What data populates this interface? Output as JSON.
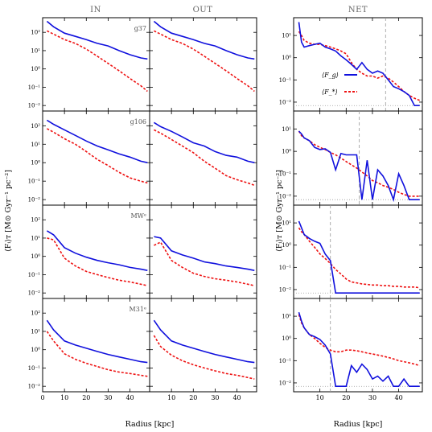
{
  "chart_data": {
    "type": "line",
    "column_titles": [
      "IN",
      "OUT",
      "NET"
    ],
    "row_labels": [
      "g37",
      "g106",
      "MWᵉ",
      "M31ᵉ"
    ],
    "ylabel_left": "⟨Fᵢ⟩ᴛ  [M⊙ Gyr⁻¹ pc⁻²]",
    "ylabel_right": "⟨Fᵢ⟩ᴛ  [M⊙ Gyr⁻¹ pc⁻²]",
    "xlabel": "Radius [kpc]",
    "xlim": [
      0,
      49
    ],
    "ylim_log10": [
      -2.3,
      2.8
    ],
    "ylim_net_log10": [
      -2.4,
      1.8
    ],
    "x_tick_values": [
      0,
      10,
      20,
      30,
      40
    ],
    "x_tick_values_right": [
      10,
      20,
      30,
      40
    ],
    "y_tick_labels": [
      "10⁻²",
      "10⁻¹",
      "10⁰",
      "10¹",
      "10²"
    ],
    "y_tick_exponents": [
      -2,
      -1,
      0,
      1,
      2
    ],
    "y_tick_labels_net": [
      "10⁻²",
      "10⁻¹",
      "10⁰",
      "10¹"
    ],
    "y_tick_exponents_net": [
      -2,
      -1,
      0,
      1
    ],
    "legend": {
      "gas": "⟨F_g⟩",
      "stars": "⟨F_*⟩",
      "placement": "upper-left of top NET panel"
    },
    "colors": {
      "gas": "#1010dd",
      "stars": "#ee1111",
      "guide": "#999999"
    },
    "series_names": [
      "gas",
      "stars"
    ],
    "x": [
      2,
      5,
      10,
      15,
      20,
      25,
      30,
      35,
      40,
      45,
      48
    ],
    "x_net": [
      2,
      3,
      4,
      6,
      8,
      10,
      12,
      14,
      16,
      18,
      20,
      22,
      24,
      26,
      28,
      30,
      32,
      34,
      36,
      38,
      40,
      42,
      44,
      46,
      48
    ],
    "vline_x": [
      35,
      25,
      14,
      14
    ],
    "floor_value": 0.007,
    "panels": [
      {
        "row": 0,
        "col": 0,
        "gas": [
          400,
          200,
          90,
          60,
          40,
          25,
          18,
          10,
          6,
          4,
          3.5
        ],
        "stars": [
          120,
          80,
          40,
          25,
          12,
          5,
          2,
          0.8,
          0.3,
          0.12,
          0.06
        ]
      },
      {
        "row": 0,
        "col": 1,
        "gas": [
          400,
          200,
          90,
          60,
          40,
          25,
          18,
          10,
          6,
          4,
          3.5
        ],
        "stars": [
          120,
          80,
          40,
          25,
          12,
          5,
          2,
          0.8,
          0.3,
          0.12,
          0.06
        ]
      },
      {
        "row": 0,
        "col": 2,
        "gas": [
          40,
          5,
          3,
          3.5,
          4,
          4.5,
          3,
          2.5,
          2,
          1.2,
          0.8,
          0.5,
          0.3,
          0.6,
          0.3,
          0.2,
          0.25,
          0.2,
          0.1,
          0.05,
          0.04,
          0.03,
          0.02,
          0.007,
          0.007
        ],
        "stars": [
          15,
          10,
          6,
          4.5,
          4,
          4,
          3.5,
          3,
          2.5,
          2,
          1.5,
          0.6,
          0.3,
          0.2,
          0.15,
          0.15,
          0.12,
          0.15,
          0.12,
          0.08,
          0.05,
          0.03,
          0.02,
          0.015,
          0.012
        ]
      },
      {
        "row": 1,
        "col": 0,
        "gas": [
          200,
          120,
          60,
          30,
          15,
          8,
          5,
          3,
          2,
          1.2,
          1.0
        ],
        "stars": [
          70,
          45,
          20,
          10,
          4,
          1.5,
          0.7,
          0.3,
          0.15,
          0.1,
          0.08
        ]
      },
      {
        "row": 1,
        "col": 1,
        "gas": [
          150,
          90,
          50,
          25,
          12,
          8,
          4,
          2.5,
          2,
          1.2,
          1.0
        ],
        "stars": [
          60,
          40,
          18,
          8,
          3.5,
          1.2,
          0.5,
          0.2,
          0.12,
          0.08,
          0.06
        ]
      },
      {
        "row": 1,
        "col": 2,
        "gas": [
          8,
          6,
          4,
          3,
          1.5,
          1.2,
          1.3,
          0.9,
          0.15,
          0.8,
          0.7,
          0.7,
          0.7,
          0.007,
          0.4,
          0.007,
          0.15,
          0.08,
          0.03,
          0.007,
          0.1,
          0.03,
          0.007,
          0.007,
          0.007
        ],
        "stars": [
          8,
          5,
          4,
          3,
          2,
          1.5,
          1.2,
          0.9,
          0.7,
          0.5,
          0.35,
          0.25,
          0.18,
          0.12,
          0.08,
          0.05,
          0.04,
          0.03,
          0.025,
          0.02,
          0.015,
          0.012,
          0.01,
          0.01,
          0.01
        ]
      },
      {
        "row": 2,
        "col": 0,
        "gas": [
          25,
          15,
          3,
          1.5,
          0.9,
          0.6,
          0.45,
          0.35,
          0.25,
          0.2,
          0.17
        ],
        "stars": [
          10,
          8,
          0.8,
          0.3,
          0.15,
          0.1,
          0.07,
          0.05,
          0.04,
          0.03,
          0.025
        ]
      },
      {
        "row": 2,
        "col": 1,
        "gas": [
          12,
          10,
          2,
          1.2,
          0.8,
          0.5,
          0.4,
          0.3,
          0.25,
          0.2,
          0.17
        ],
        "stars": [
          4,
          6,
          0.6,
          0.25,
          0.12,
          0.08,
          0.06,
          0.05,
          0.04,
          0.03,
          0.025
        ]
      },
      {
        "row": 2,
        "col": 2,
        "gas": [
          12,
          6,
          3,
          2,
          1.5,
          1.2,
          0.4,
          0.2,
          0.007,
          0.007,
          0.007,
          0.007,
          0.007,
          0.007,
          0.007,
          0.007,
          0.007,
          0.007,
          0.007,
          0.007,
          0.007,
          0.007,
          0.007,
          0.007,
          0.007
        ],
        "stars": [
          6,
          4,
          3,
          1.5,
          0.8,
          0.4,
          0.25,
          0.15,
          0.08,
          0.05,
          0.03,
          0.022,
          0.02,
          0.018,
          0.017,
          0.016,
          0.016,
          0.015,
          0.015,
          0.014,
          0.014,
          0.013,
          0.013,
          0.013,
          0.012
        ]
      },
      {
        "row": 3,
        "col": 0,
        "gas": [
          40,
          12,
          3,
          1.8,
          1.2,
          0.8,
          0.55,
          0.4,
          0.3,
          0.22,
          0.2
        ],
        "stars": [
          10,
          3,
          0.6,
          0.3,
          0.18,
          0.12,
          0.08,
          0.06,
          0.05,
          0.04,
          0.035
        ]
      },
      {
        "row": 3,
        "col": 1,
        "gas": [
          40,
          12,
          3,
          1.8,
          1.2,
          0.8,
          0.55,
          0.4,
          0.3,
          0.22,
          0.2
        ],
        "stars": [
          6,
          1.5,
          0.5,
          0.25,
          0.15,
          0.1,
          0.07,
          0.05,
          0.04,
          0.03,
          0.025
        ]
      },
      {
        "row": 3,
        "col": 2,
        "gas": [
          15,
          6,
          3,
          1.5,
          1.2,
          0.9,
          0.5,
          0.2,
          0.007,
          0.007,
          0.007,
          0.06,
          0.03,
          0.07,
          0.04,
          0.015,
          0.02,
          0.012,
          0.02,
          0.007,
          0.007,
          0.015,
          0.007,
          0.007,
          0.007
        ],
        "stars": [
          12,
          5,
          3,
          1.5,
          1.0,
          0.6,
          0.4,
          0.3,
          0.25,
          0.25,
          0.3,
          0.3,
          0.28,
          0.25,
          0.22,
          0.2,
          0.18,
          0.16,
          0.14,
          0.12,
          0.1,
          0.09,
          0.08,
          0.07,
          0.06
        ]
      }
    ]
  }
}
